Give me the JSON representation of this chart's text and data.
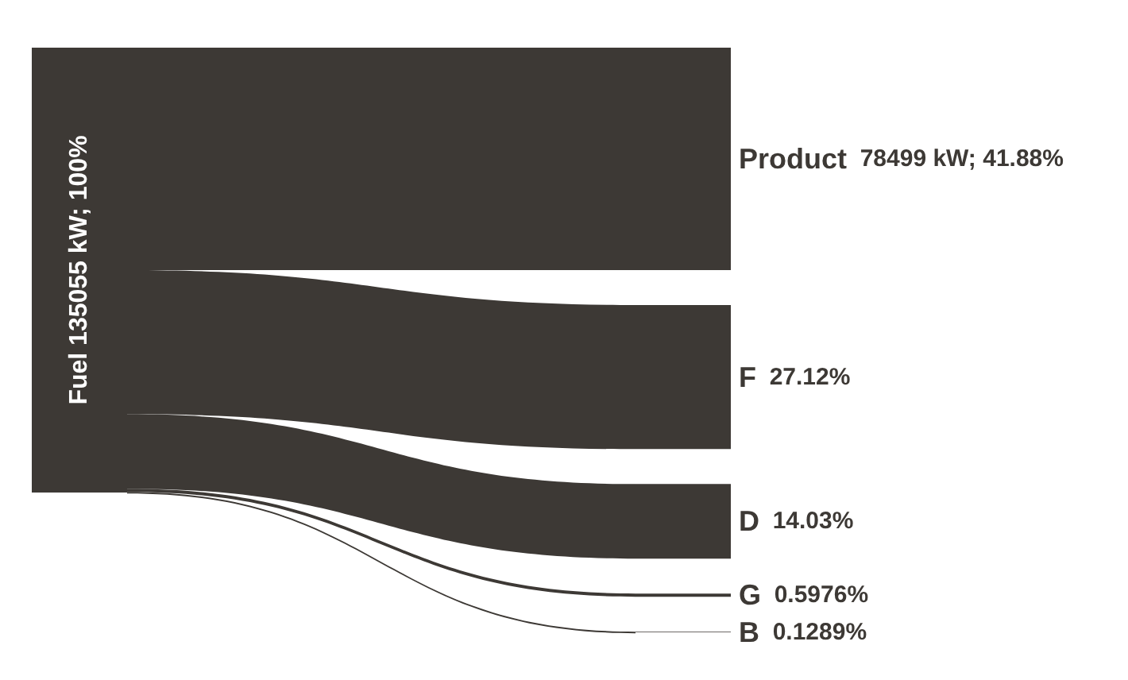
{
  "chart_data": {
    "type": "other",
    "annotations": [
      "Fuel 135055 kW; 100%"
    ],
    "categories": [
      "Product",
      "F",
      "D",
      "G",
      "B"
    ],
    "values": [
      41.88,
      27.12,
      14.03,
      0.5976,
      0.1289
    ],
    "value_labels": [
      "78499 kW; 41.88%",
      "27.12%",
      "14.03%",
      "0.5976%",
      "0.1289%"
    ],
    "color": "#3d3935"
  }
}
